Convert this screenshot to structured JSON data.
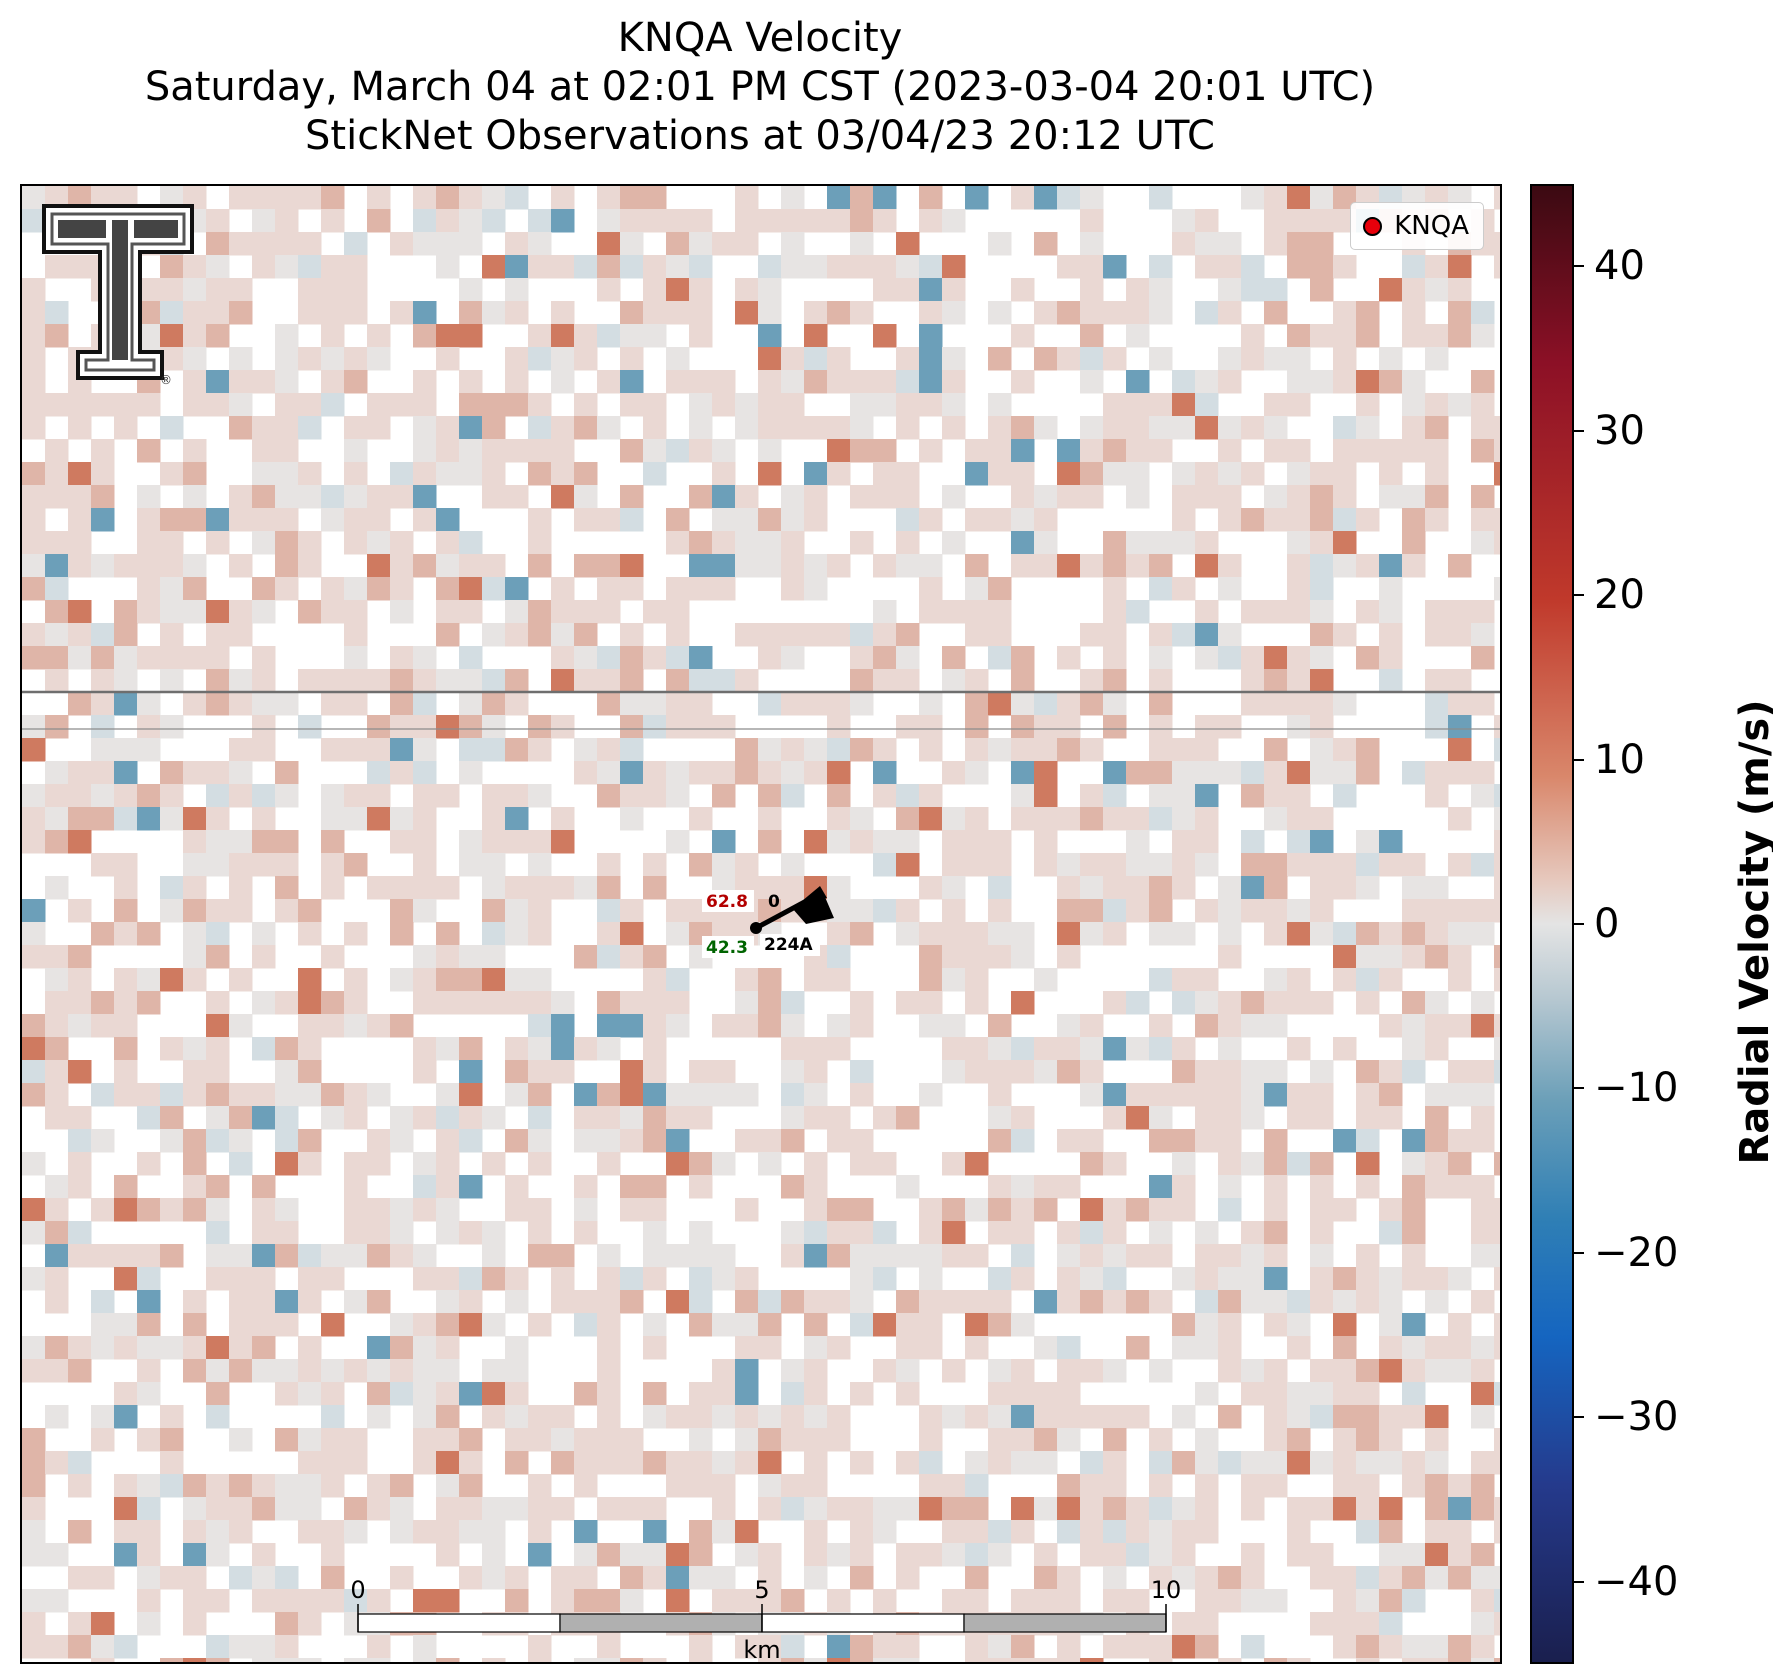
{
  "title": {
    "line1": "KNQA Velocity",
    "line2": "Saturday, March 04 at 02:01 PM CST (2023-03-04 20:01 UTC)",
    "line3": "StickNet Observations at 03/04/23 20:12 UTC"
  },
  "legend": {
    "label": "KNQA",
    "marker_color": "#e8000b"
  },
  "colorbar": {
    "label": "Radial Velocity (m/s)",
    "range": [
      -45,
      45
    ],
    "ticks": [
      {
        "value": 40,
        "label": "40"
      },
      {
        "value": 30,
        "label": "30"
      },
      {
        "value": 20,
        "label": "20"
      },
      {
        "value": 10,
        "label": "10"
      },
      {
        "value": 0,
        "label": "0"
      },
      {
        "value": -10,
        "label": "−10"
      },
      {
        "value": -20,
        "label": "−20"
      },
      {
        "value": -30,
        "label": "−30"
      },
      {
        "value": -40,
        "label": "−40"
      }
    ]
  },
  "station": {
    "id": "224A",
    "temperature": "62.8",
    "dewpoint": "42.3",
    "top_right_value": "0"
  },
  "scale_bar": {
    "ticks": [
      "0",
      "5",
      "10"
    ],
    "unit": "km"
  },
  "logo": {
    "name": "texas-tech-double-t-logo",
    "mark": "®"
  },
  "colors": {
    "positive_light": "#ead8d3",
    "positive_medium": "#dfb5a8",
    "positive_strong": "#cf7a60",
    "negative_light": "#d3dde2",
    "negative_strong": "#6c9fb9"
  }
}
